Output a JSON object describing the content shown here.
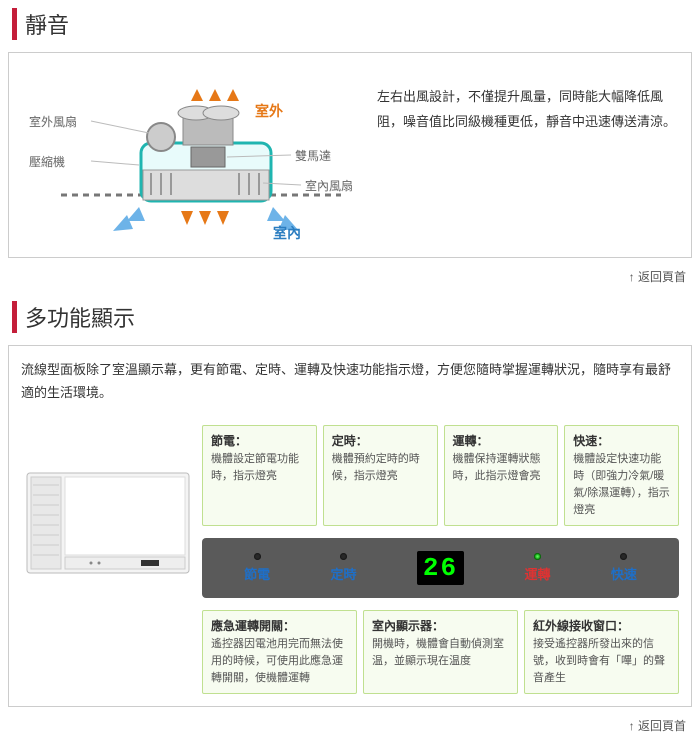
{
  "section1": {
    "title": "靜音",
    "description": "左右出風設計，不僅提升風量，同時能大幅降低風阻，噪音值比同級機種更低，靜音中迅速傳送清涼。",
    "labels": {
      "outdoor_fan": "室外風扇",
      "compressor": "壓縮機",
      "dual_motor": "雙馬達",
      "indoor_fan": "室內風扇",
      "outdoor": "室外",
      "indoor": "室內"
    },
    "colors": {
      "orange": "#e67817",
      "blue": "#2b7dc0",
      "gray": "#999",
      "teal": "#1fb5b0"
    }
  },
  "section2": {
    "title": "多功能顯示",
    "intro": "流線型面板除了室溫顯示幕，更有節電、定時、運轉及快速功能指示燈，方便您隨時掌握運轉狀況，隨時享有最舒適的生活環境。",
    "callouts_top": [
      {
        "title": "節電：",
        "body": "機體設定節電功能時，指示燈亮"
      },
      {
        "title": "定時：",
        "body": "機體預約定時的時候，指示燈亮"
      },
      {
        "title": "運轉：",
        "body": "機體保持運轉狀態時，此指示燈會亮"
      },
      {
        "title": "快速：",
        "body": "機體設定快速功能時（即強力冷氣/暖氣/除濕運轉），指示燈亮"
      }
    ],
    "panel": {
      "leds": [
        {
          "label": "節電",
          "color": "c-blue"
        },
        {
          "label": "定時",
          "color": "c-blue"
        },
        {
          "label": "運轉",
          "color": "c-red"
        },
        {
          "label": "快速",
          "color": "c-blue"
        }
      ],
      "temp": "26"
    },
    "callouts_bottom": [
      {
        "title": "應急運轉開關：",
        "body": "遙控器因電池用完而無法使用的時候，可使用此應急運轉開關，使機體運轉"
      },
      {
        "title": "室內顯示器：",
        "body": "開機時，機體會自動偵測室温，並顯示現在温度"
      },
      {
        "title": "紅外線接收窗口：",
        "body": "接受遙控器所發出來的信號，收到時會有「嗶」的聲音產生"
      }
    ]
  },
  "back_to_top": "返回頁首"
}
